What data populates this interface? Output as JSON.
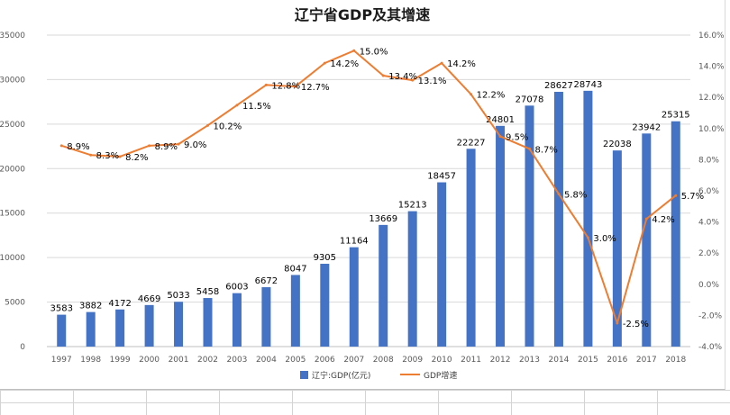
{
  "chart_data": {
    "type": "bar",
    "title": "辽宁省GDP及其增速",
    "categories": [
      "1997",
      "1998",
      "1999",
      "2000",
      "2001",
      "2002",
      "2003",
      "2004",
      "2005",
      "2006",
      "2007",
      "2008",
      "2009",
      "2010",
      "2011",
      "2012",
      "2013",
      "2014",
      "2015",
      "2016",
      "2017",
      "2018"
    ],
    "series": [
      {
        "name": "辽宁:GDP(亿元)",
        "type": "bar",
        "axis": "left",
        "color": "#4472c4",
        "values": [
          3583,
          3882,
          4172,
          4669,
          5033,
          5458,
          6003,
          6672,
          8047,
          9305,
          11164,
          13669,
          15213,
          18457,
          22227,
          24801,
          27078,
          28627,
          28743,
          22038,
          23942,
          25315
        ]
      },
      {
        "name": "GDP增速",
        "type": "line",
        "axis": "right",
        "color": "#ed7d31",
        "values": [
          8.9,
          8.3,
          8.2,
          8.9,
          9.0,
          10.2,
          11.5,
          12.8,
          12.7,
          14.2,
          15.0,
          13.4,
          13.1,
          14.2,
          12.2,
          9.5,
          8.7,
          5.8,
          3.0,
          -2.5,
          4.2,
          5.7
        ]
      }
    ],
    "y_left": {
      "min": 0,
      "max": 35000,
      "step": 5000,
      "ticks": [
        "0",
        "5000",
        "10000",
        "15000",
        "20000",
        "25000",
        "30000",
        "35000"
      ]
    },
    "y_right": {
      "min": -4,
      "max": 16,
      "step": 2,
      "ticks": [
        "-4.0%",
        "-2.0%",
        "0.0%",
        "2.0%",
        "4.0%",
        "6.0%",
        "8.0%",
        "10.0%",
        "12.0%",
        "14.0%",
        "16.0%"
      ]
    },
    "grid": true,
    "legend_position": "bottom"
  }
}
